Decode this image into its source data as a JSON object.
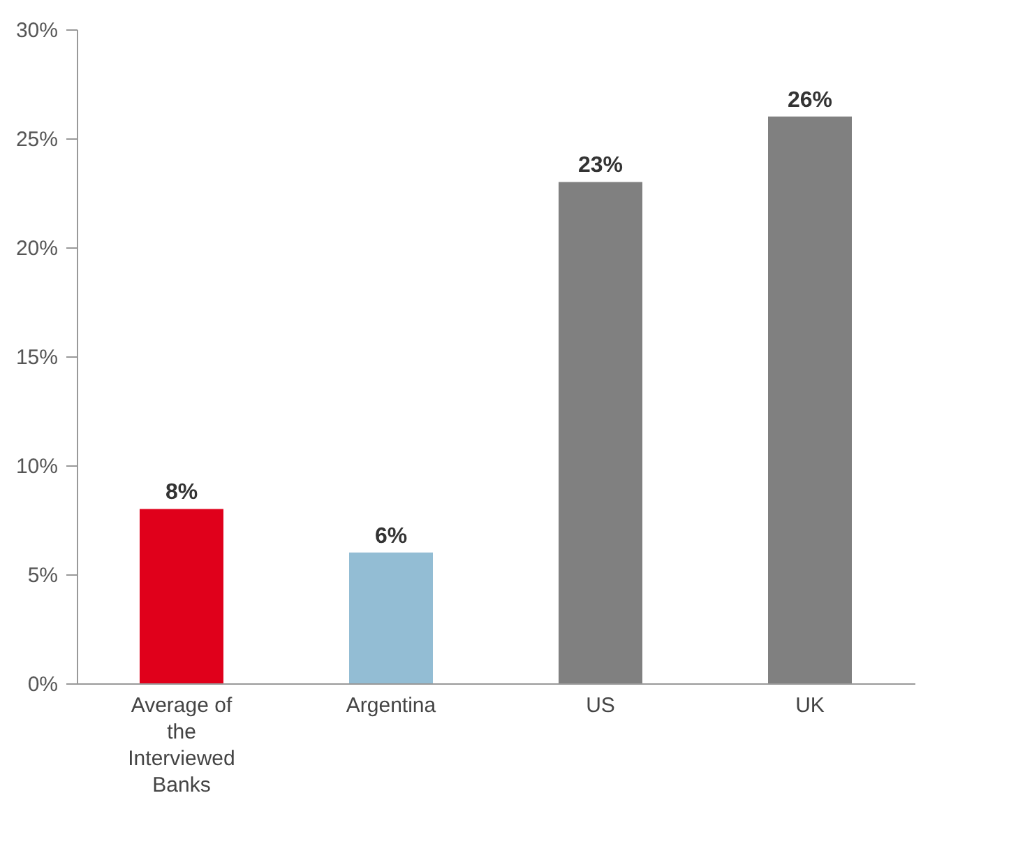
{
  "chart_data": {
    "type": "bar",
    "categories": [
      "Average of the Interviewed Banks",
      "Argentina",
      "US",
      "UK"
    ],
    "values": [
      8,
      6,
      23,
      26
    ],
    "colors": [
      "#e0001b",
      "#93bdd4",
      "#808080",
      "#808080"
    ],
    "ylim": [
      0,
      30
    ],
    "yticks": [
      {
        "value": 0,
        "label": "0%"
      },
      {
        "value": 5,
        "label": "5%"
      },
      {
        "value": 10,
        "label": "10%"
      },
      {
        "value": 15,
        "label": "15%"
      },
      {
        "value": 20,
        "label": "20%"
      },
      {
        "value": 25,
        "label": "25%"
      },
      {
        "value": 30,
        "label": "30%"
      }
    ],
    "value_labels": [
      "8%",
      "6%",
      "23%",
      "26%"
    ],
    "grid": false
  }
}
